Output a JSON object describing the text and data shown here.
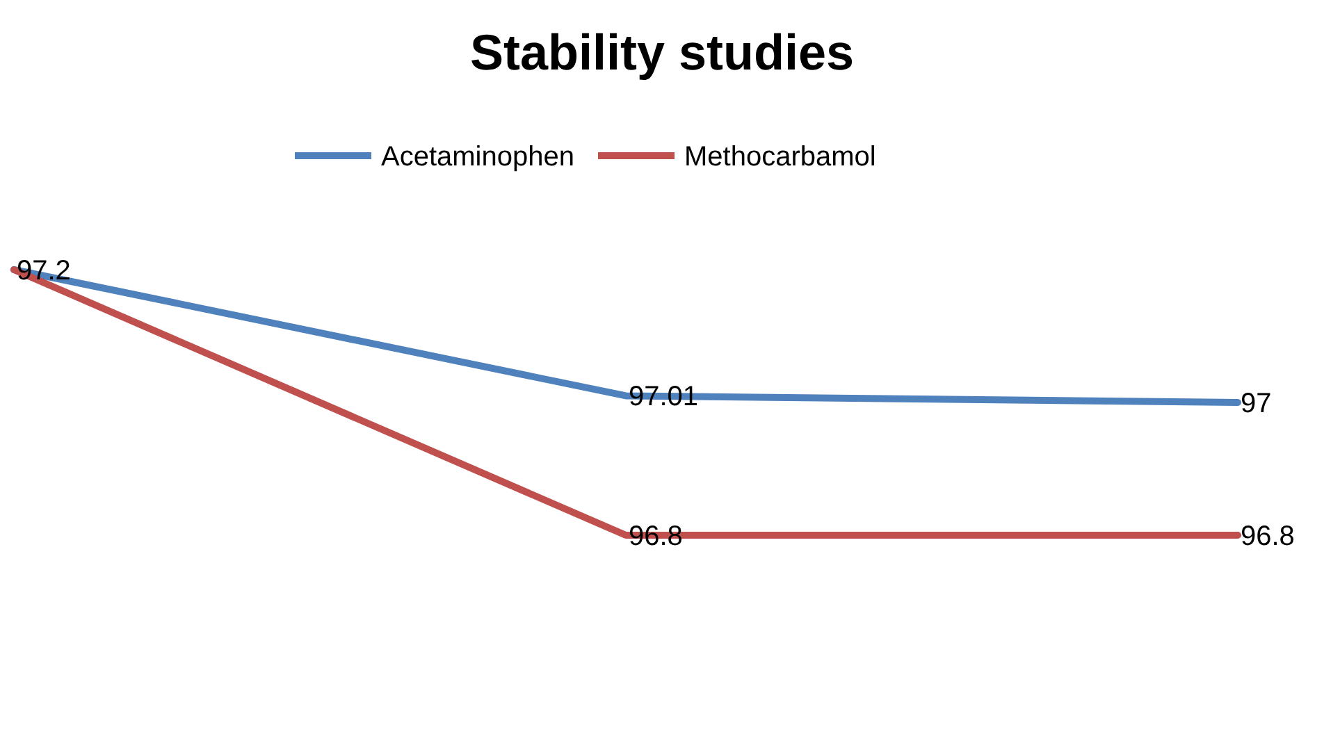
{
  "chart_data": {
    "type": "line",
    "title": "Stability studies",
    "categories": [
      null,
      null,
      null
    ],
    "legend": "top",
    "series": [
      {
        "name": "Acetaminophen",
        "color": "#4f81bd",
        "values": [
          97.2,
          97.01,
          97
        ],
        "value_labels": [
          "97.2",
          "97.01",
          "97"
        ]
      },
      {
        "name": "Methocarbamol",
        "color": "#c0504d",
        "values": [
          97.2,
          96.8,
          96.8
        ],
        "value_labels": [
          null,
          "96.8",
          "96.8"
        ]
      }
    ]
  }
}
